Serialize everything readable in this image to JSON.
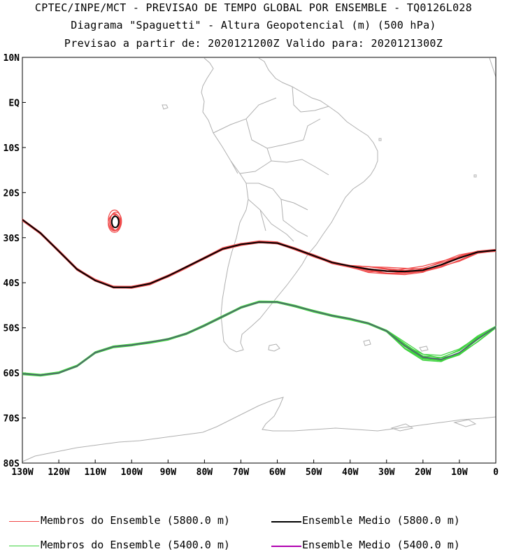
{
  "title": {
    "line1": "CPTEC/INPE/MCT - PREVISAO DE TEMPO GLOBAL POR ENSEMBLE - TQ0126L028",
    "line2": "Diagrama \"Spaguetti\" - Altura Geopotencial (m) (500 hPa)",
    "line3": "Previsao a partir de: 2020121200Z  Valido para: 2020121300Z"
  },
  "axes": {
    "lat_labels": [
      "10N",
      "EQ",
      "10S",
      "20S",
      "30S",
      "40S",
      "50S",
      "60S",
      "70S",
      "80S"
    ],
    "lat_values": [
      10,
      0,
      -10,
      -20,
      -30,
      -40,
      -50,
      -60,
      -70,
      -80
    ],
    "lon_labels": [
      "130W",
      "120W",
      "110W",
      "100W",
      "90W",
      "80W",
      "70W",
      "60W",
      "50W",
      "40W",
      "30W",
      "20W",
      "10W",
      "0"
    ],
    "lon_values": [
      -130,
      -120,
      -110,
      -100,
      -90,
      -80,
      -70,
      -60,
      -50,
      -40,
      -30,
      -20,
      -10,
      0
    ],
    "lon_range": [
      -130,
      0
    ],
    "lat_range": [
      -80,
      10
    ]
  },
  "colors": {
    "member_5800": "#f04848",
    "mean_5800": "#000000",
    "member_5400": "#3cd23c",
    "mean_5400": "#b000b0",
    "coast": "#b0b0b0"
  },
  "legend": {
    "members_5800": "Membros do Ensemble (5800.0 m)",
    "mean_5800": "Ensemble Medio (5800.0 m)",
    "members_5400": "Membros do Ensemble (5400.0 m)",
    "mean_5400": "Ensemble Medio (5400.0 m)"
  },
  "chart_data": {
    "type": "line",
    "xlabel": "",
    "ylabel": "",
    "series": [
      {
        "name": "Ensemble Medio (5800.0 m)",
        "lon": [
          -130,
          -125,
          -120,
          -115,
          -110,
          -105,
          -100,
          -95,
          -90,
          -85,
          -80,
          -75,
          -70,
          -65,
          -60,
          -55,
          -50,
          -45,
          -40,
          -35,
          -30,
          -25,
          -20,
          -15,
          -10,
          -5,
          0
        ],
        "lat": [
          -26,
          -29,
          -33,
          -37,
          -39.5,
          -41,
          -41,
          -40.2,
          -38.5,
          -36.5,
          -34.5,
          -32.5,
          -31.5,
          -31,
          -31.2,
          -32.5,
          -34,
          -35.5,
          -36.3,
          -37,
          -37.4,
          -37.5,
          -37.2,
          -36,
          -34.5,
          -33.2,
          -32.8
        ]
      },
      {
        "name": "Ensemble Medio (5400.0 m)",
        "lon": [
          -130,
          -125,
          -120,
          -115,
          -110,
          -105,
          -100,
          -95,
          -90,
          -85,
          -80,
          -75,
          -70,
          -65,
          -60,
          -55,
          -50,
          -45,
          -40,
          -35,
          -30,
          -25,
          -20,
          -15,
          -10,
          -5,
          0
        ],
        "lat": [
          -60.2,
          -60.5,
          -60,
          -58.5,
          -55.5,
          -54.2,
          -53.8,
          -53.2,
          -52.5,
          -51.3,
          -49.5,
          -47.5,
          -45.5,
          -44.3,
          -44.3,
          -45.2,
          -46.3,
          -47.3,
          -48,
          -49,
          -50.7,
          -54,
          -56.5,
          -57,
          -55.5,
          -52.5,
          -49.8
        ]
      }
    ],
    "closed_contour_5800": {
      "lon": -104.5,
      "lat": -26.5
    }
  }
}
